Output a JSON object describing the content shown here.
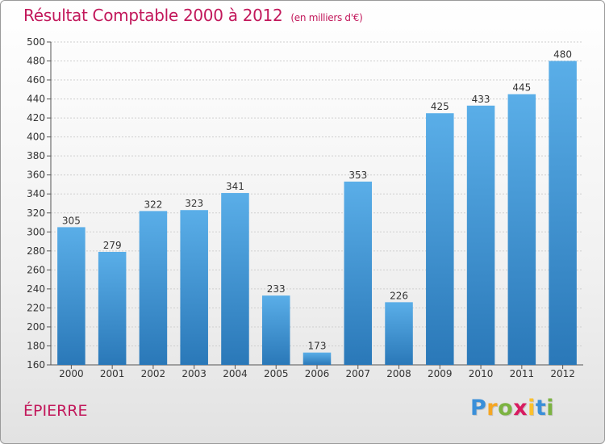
{
  "header": {
    "title": "Résultat Comptable 2000 à 2012",
    "subtitle": "(en milliers d'€)"
  },
  "location": "ÉPIERRE",
  "logo": {
    "letters": [
      "P",
      "r",
      "o",
      "x",
      "i",
      "t",
      "i"
    ],
    "colors": [
      "#3a8fd9",
      "#f5a623",
      "#7cb342",
      "#d81b60",
      "#fbc02d",
      "#3a8fd9",
      "#7cb342"
    ]
  },
  "chart_data": {
    "type": "bar",
    "title": "Résultat Comptable 2000 à 2012",
    "subtitle": "(en milliers d'€)",
    "categories": [
      "2000",
      "2001",
      "2002",
      "2003",
      "2004",
      "2005",
      "2006",
      "2007",
      "2008",
      "2009",
      "2010",
      "2011",
      "2012"
    ],
    "values": [
      305,
      279,
      322,
      323,
      341,
      233,
      173,
      353,
      226,
      425,
      433,
      445,
      480
    ],
    "ylim": [
      160,
      500
    ],
    "yticks": [
      160,
      180,
      200,
      220,
      240,
      260,
      280,
      300,
      320,
      340,
      360,
      380,
      400,
      420,
      440,
      460,
      480,
      500
    ],
    "grid": true,
    "bar_color_top": "#5aaee8",
    "bar_color_bottom": "#2a78b8"
  }
}
